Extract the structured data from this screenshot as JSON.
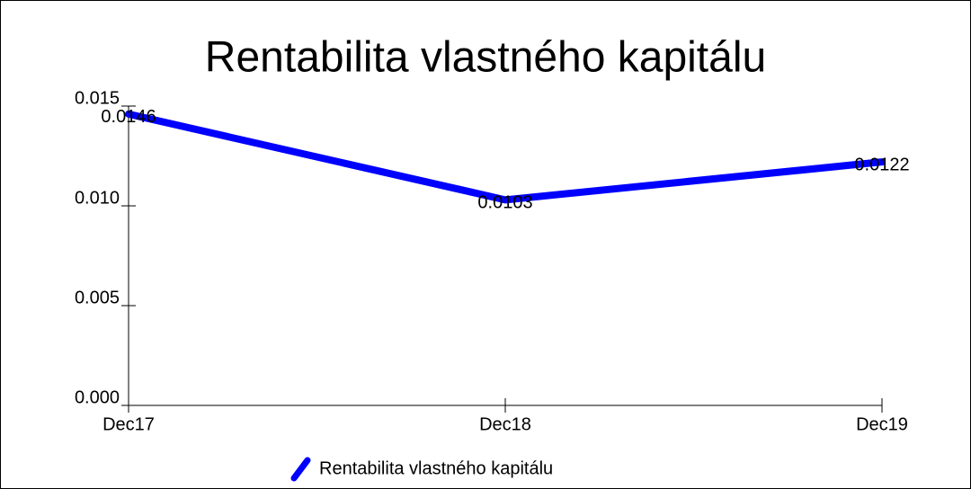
{
  "chart_data": {
    "type": "line",
    "title": "Rentabilita vlastného kapitálu",
    "categories": [
      "Dec17",
      "Dec18",
      "Dec19"
    ],
    "series": [
      {
        "name": "Rentabilita vlastného kapitálu",
        "color": "#0000ff",
        "values": [
          0.0146,
          0.0103,
          0.0122
        ]
      }
    ],
    "ylim": [
      0,
      0.015
    ],
    "yticks": [
      {
        "value": 0,
        "label": "0.000"
      },
      {
        "value": 0.005,
        "label": "0.005"
      },
      {
        "value": 0.01,
        "label": "0.010"
      },
      {
        "value": 0.015,
        "label": "0.015"
      }
    ]
  }
}
